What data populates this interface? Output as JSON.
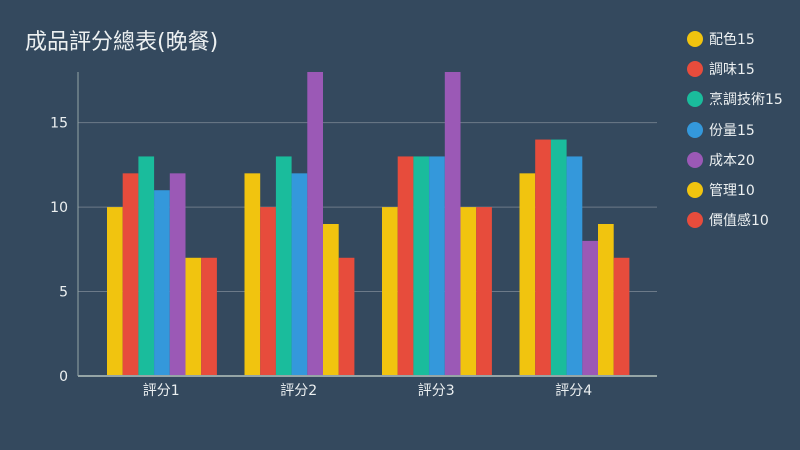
{
  "chart_data": {
    "type": "bar",
    "title": "成品評分總表(晚餐)",
    "categories": [
      "評分1",
      "評分2",
      "評分3",
      "評分4"
    ],
    "ylim": [
      0,
      18
    ],
    "yticks": [
      0,
      5,
      10,
      15
    ],
    "grid": true,
    "legend_position": "right",
    "series": [
      {
        "name": "配色15",
        "color": "#f1c40f",
        "values": [
          10,
          12,
          10,
          12
        ]
      },
      {
        "name": "調味15",
        "color": "#e74c3c",
        "values": [
          12,
          10,
          13,
          14
        ]
      },
      {
        "name": "烹調技術15",
        "color": "#1abc9c",
        "values": [
          13,
          13,
          13,
          14
        ]
      },
      {
        "name": "份量15",
        "color": "#3498db",
        "values": [
          11,
          12,
          13,
          13
        ]
      },
      {
        "name": "成本20",
        "color": "#9b59b6",
        "values": [
          12,
          18,
          18,
          8
        ]
      },
      {
        "name": "管理10",
        "color": "#f1c40f",
        "values": [
          7,
          9,
          10,
          9
        ]
      },
      {
        "name": "價值感10",
        "color": "#e74c3c",
        "values": [
          7,
          7,
          10,
          7
        ]
      }
    ]
  }
}
